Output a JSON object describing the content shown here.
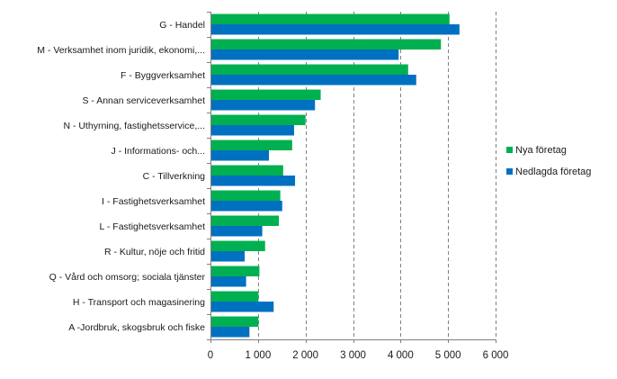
{
  "chart_data": {
    "type": "bar",
    "orientation": "horizontal",
    "title": "",
    "xlabel": "",
    "ylabel": "",
    "xlim": [
      0,
      6000
    ],
    "x_ticks": [
      0,
      1000,
      2000,
      3000,
      4000,
      5000,
      6000
    ],
    "x_tick_labels": [
      "0",
      "1 000",
      "2 000",
      "3 000",
      "4 000",
      "5 000",
      "6 000"
    ],
    "grid": "vertical-dashed",
    "legend_position": "right",
    "categories": [
      "G - Handel",
      "M - Verksamhet inom juridik, ekonomi,...",
      "F - Byggverksamhet",
      "S - Annan serviceverksamhet",
      "N - Uthyrning, fastighetsservice,...",
      "J - Informations- och...",
      "C - Tillverkning",
      "I - Fastighetsverksamhet",
      "L - Fastighetsverksamhet",
      "R - Kultur, nöje och fritid",
      "Q - Vård och omsorg; sociala tjänster",
      "H - Transport och magasinering",
      "A -Jordbruk, skogsbruk och fiske"
    ],
    "series": [
      {
        "name": "Nya företag",
        "color": "#00b050",
        "values": [
          5030,
          4850,
          4160,
          2320,
          2000,
          1720,
          1530,
          1470,
          1440,
          1150,
          1030,
          1010,
          1010
        ]
      },
      {
        "name": "Nedlagda företag",
        "color": "#0070c0",
        "values": [
          5240,
          3960,
          4330,
          2200,
          1760,
          1230,
          1780,
          1510,
          1090,
          720,
          750,
          1330,
          820
        ]
      }
    ]
  }
}
